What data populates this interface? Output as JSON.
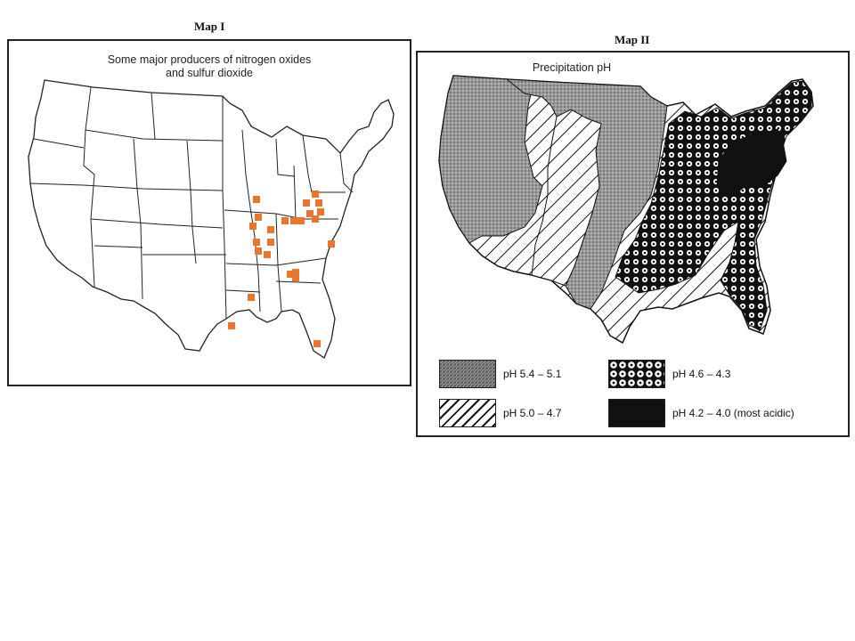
{
  "map1": {
    "title": "Map I",
    "subtitle_line1": "Some major producers of nitrogen oxides",
    "subtitle_line2": "and sulfur dioxide",
    "marker_color": "#E8762C"
  },
  "map2": {
    "title": "Map II",
    "subtitle": "Precipitation pH",
    "legend": [
      {
        "label": "pH 5.4 – 5.1",
        "pattern": "dotted-gray"
      },
      {
        "label": "pH 4.6 – 4.3",
        "pattern": "circles"
      },
      {
        "label": "pH 5.0 – 4.7",
        "pattern": "hatched"
      },
      {
        "label": "pH 4.2 – 4.0 (most acidic)",
        "pattern": "solid-black"
      }
    ]
  }
}
